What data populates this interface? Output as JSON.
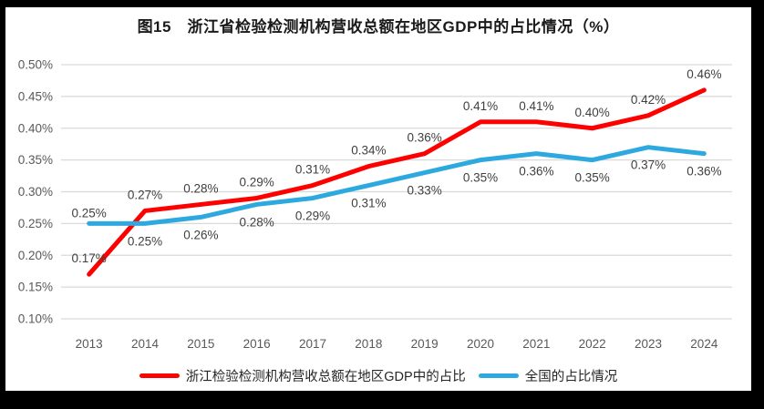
{
  "title": "图15　浙江省检验检测机构营收总额在地区GDP中的占比情况（%）",
  "chart_data": {
    "type": "line",
    "categories": [
      "2013",
      "2014",
      "2015",
      "2016",
      "2017",
      "2018",
      "2019",
      "2020",
      "2021",
      "2022",
      "2023",
      "2024"
    ],
    "series": [
      {
        "name": "浙江检验检测机构营收总额在地区GDP中的占比",
        "color": "#fe0000",
        "values": [
          0.17,
          0.27,
          0.28,
          0.29,
          0.31,
          0.34,
          0.36,
          0.41,
          0.41,
          0.4,
          0.42,
          0.46
        ],
        "labels": [
          "0.17%",
          "0.27%",
          "0.28%",
          "0.29%",
          "0.31%",
          "0.34%",
          "0.36%",
          "0.41%",
          "0.41%",
          "0.40%",
          "0.42%",
          "0.46%"
        ],
        "label_position": "above"
      },
      {
        "name": "全国的占比情况",
        "color": "#2ea9df",
        "values": [
          0.25,
          0.25,
          0.26,
          0.28,
          0.29,
          0.31,
          0.33,
          0.35,
          0.36,
          0.35,
          0.37,
          0.36
        ],
        "labels": [
          "0.25%",
          "0.25%",
          "0.26%",
          "0.28%",
          "0.29%",
          "0.31%",
          "0.33%",
          "0.35%",
          "0.36%",
          "0.35%",
          "0.37%",
          "0.36%"
        ],
        "label_position": "below",
        "first_label_position": "above"
      }
    ],
    "y_axis": {
      "min": 0.1,
      "max": 0.5,
      "step": 0.05,
      "tick_labels": [
        "0.50%",
        "0.45%",
        "0.40%",
        "0.35%",
        "0.30%",
        "0.25%",
        "0.20%",
        "0.15%",
        "0.10%"
      ]
    },
    "xlabel": "",
    "ylabel": "",
    "grid": true,
    "legend_position": "bottom"
  },
  "style": {
    "grid_color": "#d9d9d9",
    "axis_text_color": "#595959",
    "data_label_color": "#3f3f3f",
    "background": "#ffffff",
    "frame_color": "#000000"
  }
}
